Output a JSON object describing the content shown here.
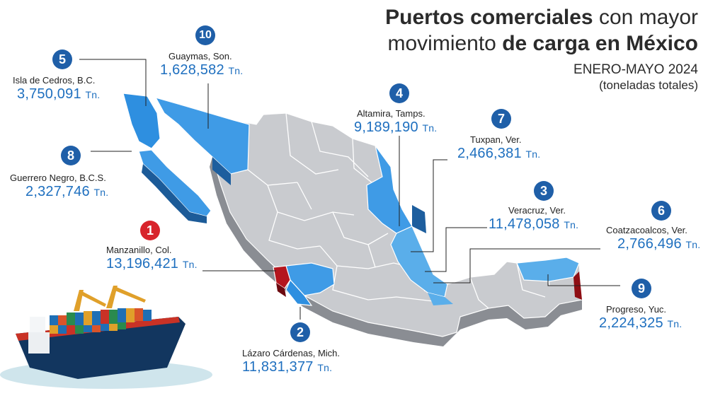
{
  "title": {
    "line1_bold": "Puertos comerciales",
    "line1_regular": " con mayor",
    "line2_regular": "movimiento ",
    "line2_bold": "de carga en México",
    "period": "ENERO-MAYO 2024",
    "unit_note": "(toneladas totales)"
  },
  "colors": {
    "badge_blue": "#1f5fa8",
    "badge_red": "#d8242b",
    "value_text": "#1e6fbf",
    "port_state_blue": "#2e8fe0",
    "highlight_red": "#b4161e"
  },
  "ports": [
    {
      "rank": "1",
      "name": "Manzanillo, Col.",
      "value": "13,196,421",
      "unit": "Tn."
    },
    {
      "rank": "2",
      "name": "Lázaro Cárdenas, Mich.",
      "value": "11,831,377",
      "unit": "Tn."
    },
    {
      "rank": "3",
      "name": "Veracruz, Ver.",
      "value": "11,478,058",
      "unit": "Tn."
    },
    {
      "rank": "4",
      "name": "Altamira, Tamps.",
      "value": "9,189,190",
      "unit": "Tn."
    },
    {
      "rank": "5",
      "name": "Isla de Cedros, B.C.",
      "value": "3,750,091",
      "unit": "Tn."
    },
    {
      "rank": "6",
      "name": "Coatzacoalcos, Ver.",
      "value": "2,766,496",
      "unit": "Tn."
    },
    {
      "rank": "7",
      "name": "Tuxpan, Ver.",
      "value": "2,466,381",
      "unit": "Tn."
    },
    {
      "rank": "8",
      "name": "Guerrero Negro, B.C.S.",
      "value": "2,327,746",
      "unit": "Tn."
    },
    {
      "rank": "9",
      "name": "Progreso, Yuc.",
      "value": "2,224,325",
      "unit": "Tn."
    },
    {
      "rank": "10",
      "name": "Guaymas, Son.",
      "value": "1,628,582",
      "unit": "Tn."
    }
  ]
}
